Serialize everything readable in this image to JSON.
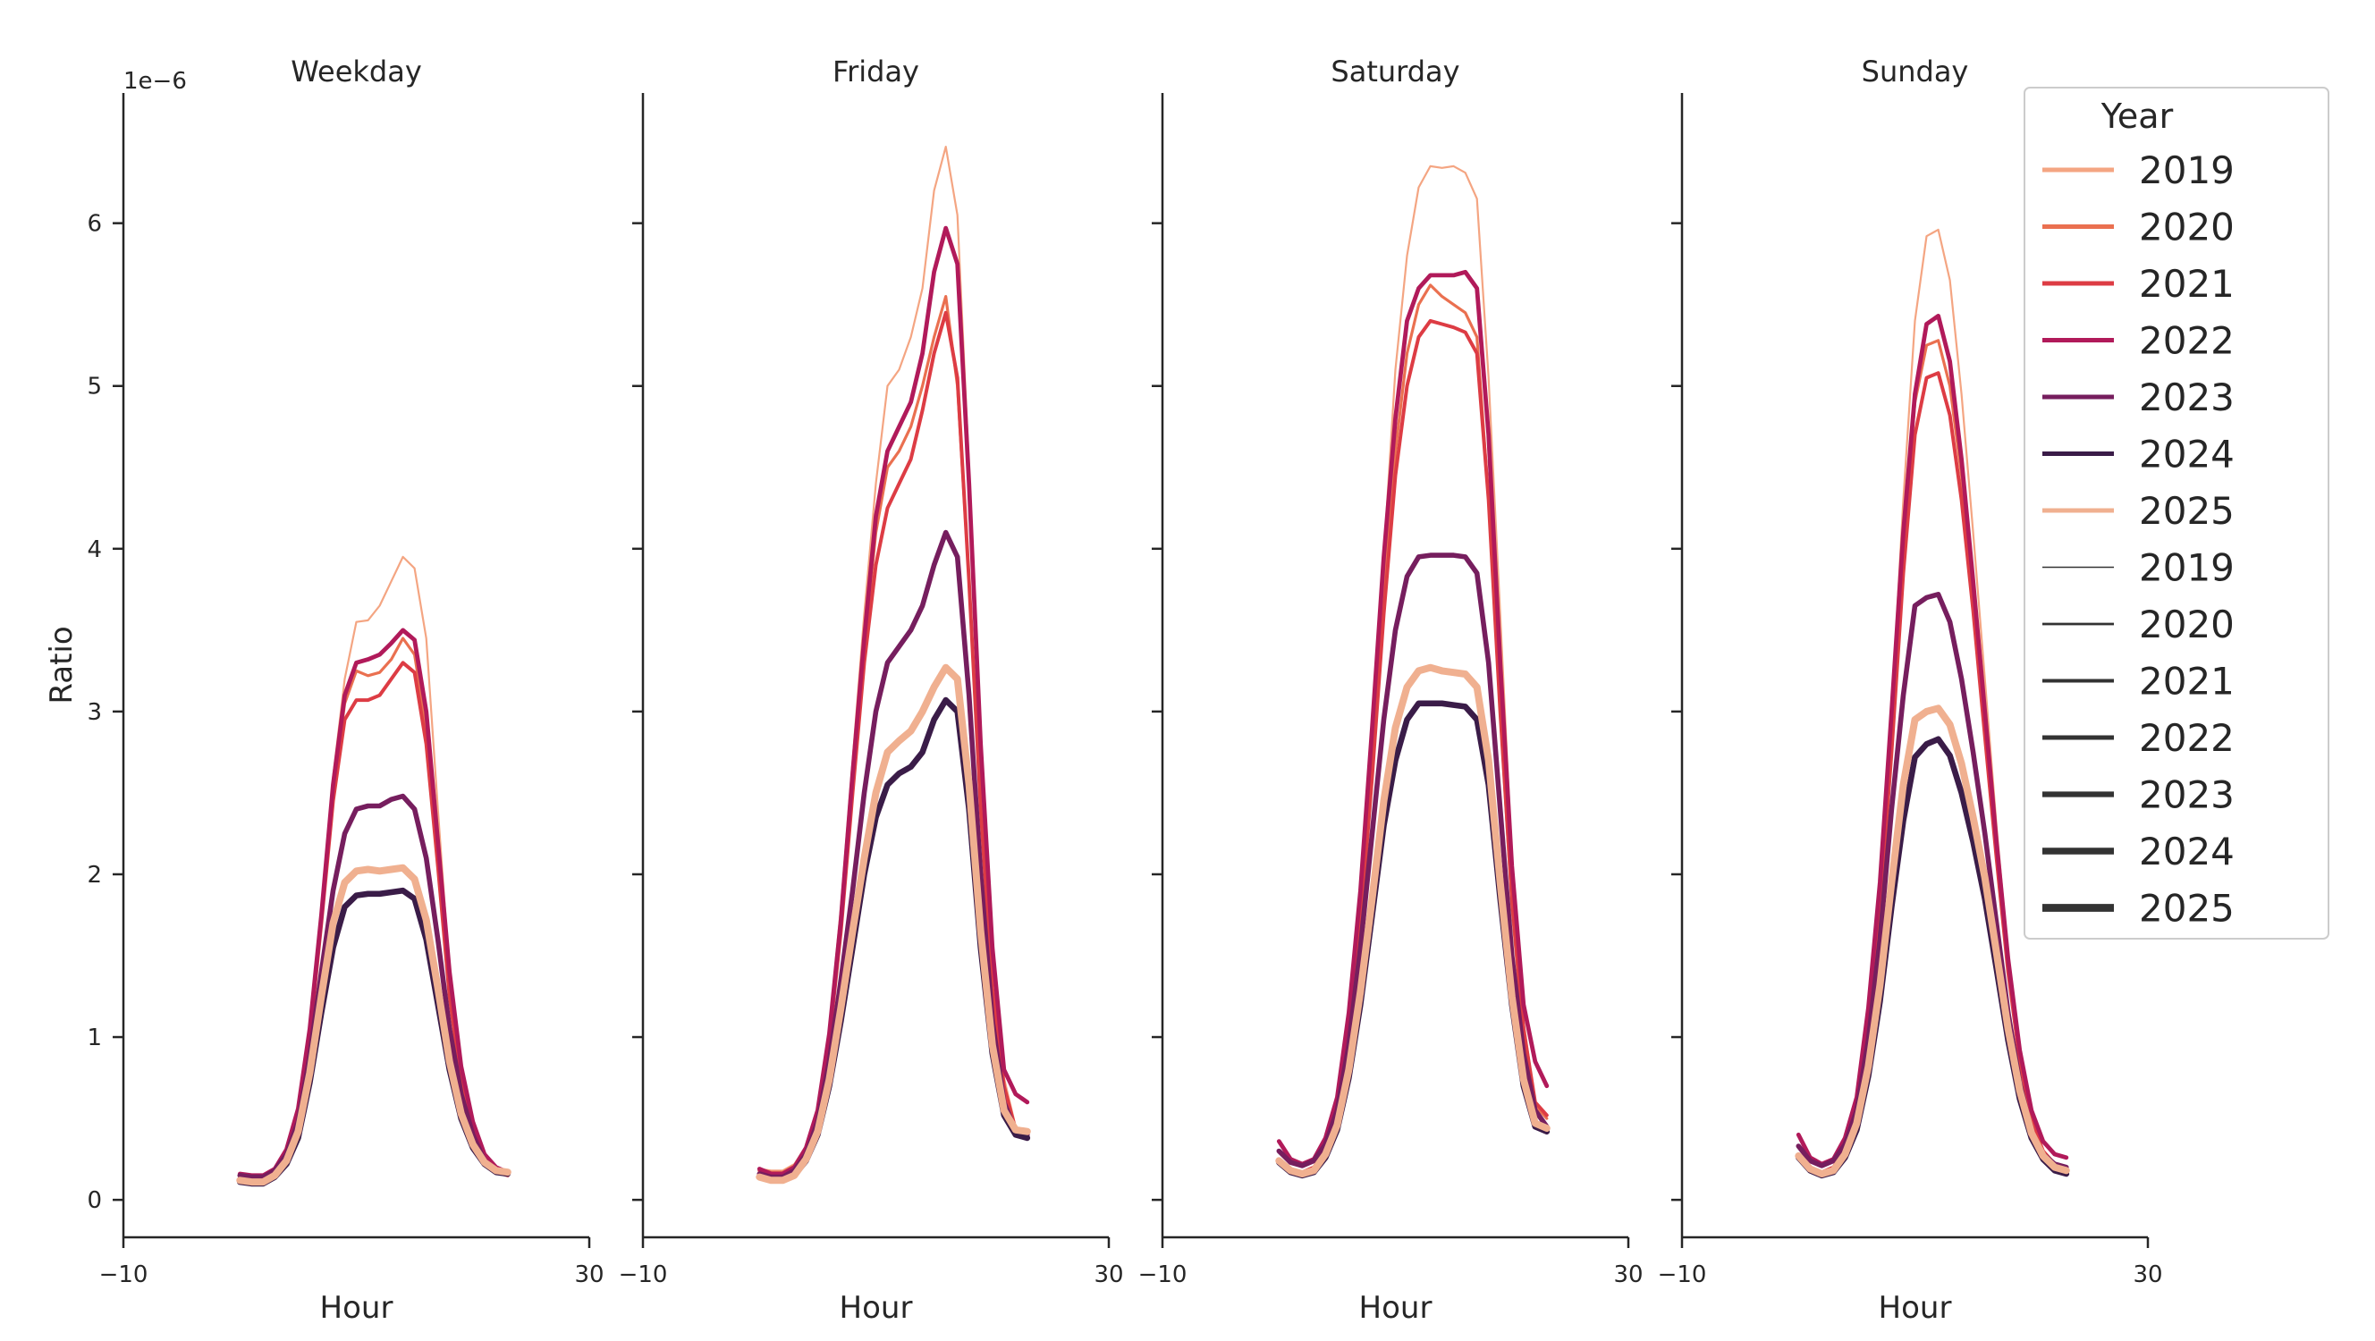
{
  "chart_data": {
    "type": "line",
    "hue_legend_title": "Year",
    "x_axis": {
      "label": "Hour",
      "range": [
        -10,
        30
      ],
      "tick_labels": [
        "−10",
        "30"
      ]
    },
    "y_axis": {
      "label": "Ratio",
      "offset_label": "1e−6",
      "range": [
        -0.23,
        6.8
      ],
      "tick_values": [
        0,
        1,
        2,
        3,
        4,
        5,
        6
      ],
      "tick_labels": [
        "0",
        "1",
        "2",
        "3",
        "4",
        "5",
        "6"
      ]
    },
    "years": [
      "2019",
      "2020",
      "2021",
      "2022",
      "2023",
      "2024",
      "2025"
    ],
    "year_colors": {
      "2019": "#f4a582",
      "2020": "#ea7050",
      "2021": "#dd3c44",
      "2022": "#b11a5a",
      "2023": "#761e5e",
      "2024": "#3a1c48",
      "2025": "#f0b090"
    },
    "size_legend_color": "#333333",
    "hours": [
      0,
      1,
      2,
      3,
      4,
      5,
      6,
      7,
      8,
      9,
      10,
      11,
      12,
      13,
      14,
      15,
      16,
      17,
      18,
      19,
      20,
      21,
      22,
      23
    ],
    "facets": [
      {
        "title": "Weekday",
        "series": [
          {
            "year": "2019",
            "values": [
              0.14,
              0.13,
              0.13,
              0.18,
              0.3,
              0.55,
              1.05,
              1.8,
              2.6,
              3.2,
              3.55,
              3.56,
              3.65,
              3.8,
              3.95,
              3.88,
              3.45,
              2.4,
              1.4,
              0.8,
              0.45,
              0.26,
              0.18,
              0.16
            ]
          },
          {
            "year": "2020",
            "values": [
              0.14,
              0.13,
              0.13,
              0.17,
              0.29,
              0.53,
              1.0,
              1.7,
              2.5,
              3.05,
              3.25,
              3.22,
              3.24,
              3.32,
              3.45,
              3.35,
              2.9,
              2.1,
              1.3,
              0.75,
              0.43,
              0.25,
              0.17,
              0.15
            ]
          },
          {
            "year": "2021",
            "values": [
              0.14,
              0.13,
              0.13,
              0.17,
              0.29,
              0.53,
              1.0,
              1.7,
              2.45,
              2.95,
              3.07,
              3.07,
              3.1,
              3.2,
              3.3,
              3.24,
              2.8,
              2.05,
              1.25,
              0.72,
              0.42,
              0.24,
              0.17,
              0.15
            ]
          },
          {
            "year": "2022",
            "values": [
              0.16,
              0.15,
              0.15,
              0.19,
              0.31,
              0.56,
              1.05,
              1.75,
              2.55,
              3.1,
              3.3,
              3.32,
              3.35,
              3.42,
              3.5,
              3.44,
              3.0,
              2.2,
              1.4,
              0.82,
              0.48,
              0.28,
              0.2,
              0.17
            ]
          },
          {
            "year": "2023",
            "values": [
              0.15,
              0.14,
              0.14,
              0.18,
              0.28,
              0.48,
              0.88,
              1.4,
              1.9,
              2.25,
              2.4,
              2.42,
              2.42,
              2.46,
              2.48,
              2.4,
              2.1,
              1.6,
              1.05,
              0.65,
              0.4,
              0.24,
              0.18,
              0.16
            ]
          },
          {
            "year": "2024",
            "values": [
              0.11,
              0.1,
              0.1,
              0.14,
              0.22,
              0.38,
              0.72,
              1.15,
              1.55,
              1.8,
              1.87,
              1.88,
              1.88,
              1.89,
              1.9,
              1.85,
              1.6,
              1.2,
              0.8,
              0.5,
              0.32,
              0.22,
              0.17,
              0.16
            ]
          },
          {
            "year": "2025",
            "values": [
              0.12,
              0.11,
              0.11,
              0.15,
              0.24,
              0.42,
              0.78,
              1.25,
              1.7,
              1.95,
              2.02,
              2.03,
              2.02,
              2.03,
              2.04,
              1.97,
              1.72,
              1.3,
              0.85,
              0.53,
              0.34,
              0.23,
              0.18,
              0.17
            ]
          }
        ]
      },
      {
        "title": "Friday",
        "series": [
          {
            "year": "2019",
            "values": [
              0.19,
              0.18,
              0.18,
              0.22,
              0.33,
              0.55,
              1.05,
              1.8,
              2.7,
              3.6,
              4.4,
              5.0,
              5.1,
              5.3,
              5.6,
              6.2,
              6.47,
              6.05,
              4.5,
              2.8,
              1.5,
              0.75,
              0.45,
              0.4
            ]
          },
          {
            "year": "2020",
            "values": [
              0.19,
              0.17,
              0.17,
              0.21,
              0.32,
              0.53,
              1.0,
              1.7,
              2.6,
              3.4,
              4.1,
              4.5,
              4.6,
              4.75,
              5.0,
              5.3,
              5.55,
              5.0,
              3.8,
              2.4,
              1.3,
              0.7,
              0.44,
              0.4
            ]
          },
          {
            "year": "2021",
            "values": [
              0.18,
              0.16,
              0.16,
              0.2,
              0.31,
              0.52,
              0.98,
              1.65,
              2.5,
              3.3,
              3.9,
              4.25,
              4.4,
              4.55,
              4.85,
              5.2,
              5.45,
              5.05,
              3.8,
              2.4,
              1.3,
              0.7,
              0.43,
              0.4
            ]
          },
          {
            "year": "2022",
            "values": [
              0.19,
              0.16,
              0.16,
              0.2,
              0.32,
              0.55,
              1.02,
              1.72,
              2.62,
              3.45,
              4.2,
              4.6,
              4.75,
              4.9,
              5.2,
              5.7,
              5.97,
              5.75,
              4.4,
              2.8,
              1.55,
              0.8,
              0.65,
              0.6
            ]
          },
          {
            "year": "2023",
            "values": [
              0.16,
              0.14,
              0.14,
              0.18,
              0.28,
              0.48,
              0.85,
              1.35,
              1.9,
              2.5,
              3.0,
              3.3,
              3.4,
              3.5,
              3.65,
              3.9,
              4.1,
              3.95,
              3.1,
              2.0,
              1.1,
              0.6,
              0.42,
              0.4
            ]
          },
          {
            "year": "2024",
            "values": [
              0.14,
              0.12,
              0.12,
              0.15,
              0.24,
              0.4,
              0.7,
              1.1,
              1.55,
              2.0,
              2.35,
              2.55,
              2.62,
              2.66,
              2.75,
              2.95,
              3.07,
              3.0,
              2.4,
              1.55,
              0.9,
              0.52,
              0.4,
              0.38
            ]
          },
          {
            "year": "2025",
            "values": [
              0.14,
              0.12,
              0.12,
              0.15,
              0.25,
              0.42,
              0.74,
              1.18,
              1.65,
              2.1,
              2.5,
              2.75,
              2.82,
              2.88,
              3.0,
              3.15,
              3.27,
              3.2,
              2.55,
              1.65,
              0.95,
              0.55,
              0.43,
              0.42
            ]
          }
        ]
      },
      {
        "title": "Saturday",
        "series": [
          {
            "year": "2019",
            "values": [
              0.24,
              0.19,
              0.17,
              0.2,
              0.31,
              0.55,
              1.05,
              1.8,
              2.8,
              3.95,
              5.1,
              5.8,
              6.22,
              6.35,
              6.34,
              6.35,
              6.31,
              6.15,
              5.05,
              3.6,
              2.1,
              1.1,
              0.6,
              0.5
            ]
          },
          {
            "year": "2020",
            "values": [
              0.24,
              0.19,
              0.17,
              0.2,
              0.3,
              0.53,
              1.0,
              1.7,
              2.65,
              3.7,
              4.6,
              5.2,
              5.5,
              5.62,
              5.55,
              5.5,
              5.45,
              5.3,
              4.3,
              3.0,
              1.8,
              1.0,
              0.58,
              0.5
            ]
          },
          {
            "year": "2021",
            "values": [
              0.25,
              0.19,
              0.17,
              0.2,
              0.3,
              0.53,
              1.0,
              1.68,
              2.6,
              3.6,
              4.45,
              5.0,
              5.3,
              5.4,
              5.38,
              5.36,
              5.33,
              5.2,
              4.3,
              3.0,
              1.85,
              1.05,
              0.6,
              0.52
            ]
          },
          {
            "year": "2022",
            "values": [
              0.36,
              0.25,
              0.22,
              0.25,
              0.38,
              0.63,
              1.15,
              1.9,
              2.9,
              3.95,
              4.8,
              5.4,
              5.6,
              5.68,
              5.68,
              5.68,
              5.7,
              5.6,
              4.7,
              3.3,
              2.05,
              1.2,
              0.85,
              0.7
            ]
          },
          {
            "year": "2023",
            "values": [
              0.3,
              0.23,
              0.21,
              0.24,
              0.34,
              0.55,
              0.95,
              1.55,
              2.25,
              2.95,
              3.5,
              3.83,
              3.95,
              3.96,
              3.96,
              3.96,
              3.95,
              3.85,
              3.3,
              2.4,
              1.5,
              0.9,
              0.55,
              0.45
            ]
          },
          {
            "year": "2024",
            "values": [
              0.23,
              0.17,
              0.15,
              0.17,
              0.26,
              0.43,
              0.75,
              1.2,
              1.75,
              2.3,
              2.7,
              2.95,
              3.05,
              3.05,
              3.05,
              3.04,
              3.03,
              2.95,
              2.55,
              1.85,
              1.2,
              0.7,
              0.45,
              0.42
            ]
          },
          {
            "year": "2025",
            "values": [
              0.24,
              0.18,
              0.16,
              0.18,
              0.28,
              0.46,
              0.8,
              1.28,
              1.85,
              2.45,
              2.9,
              3.15,
              3.25,
              3.27,
              3.25,
              3.24,
              3.23,
              3.15,
              2.7,
              1.95,
              1.25,
              0.74,
              0.47,
              0.44
            ]
          }
        ]
      },
      {
        "title": "Sunday",
        "series": [
          {
            "year": "2019",
            "values": [
              0.28,
              0.2,
              0.17,
              0.2,
              0.32,
              0.56,
              1.1,
              1.9,
              3.0,
              4.3,
              5.4,
              5.92,
              5.96,
              5.65,
              4.95,
              4.1,
              3.2,
              2.3,
              1.5,
              0.9,
              0.5,
              0.3,
              0.22,
              0.2
            ]
          },
          {
            "year": "2020",
            "values": [
              0.28,
              0.2,
              0.17,
              0.2,
              0.31,
              0.54,
              1.05,
              1.8,
              2.85,
              4.0,
              4.9,
              5.25,
              5.28,
              5.0,
              4.45,
              3.7,
              2.9,
              2.1,
              1.4,
              0.85,
              0.48,
              0.29,
              0.21,
              0.19
            ]
          },
          {
            "year": "2021",
            "values": [
              0.28,
              0.2,
              0.17,
              0.2,
              0.31,
              0.54,
              1.05,
              1.78,
              2.75,
              3.85,
              4.7,
              5.05,
              5.08,
              4.82,
              4.3,
              3.62,
              2.85,
              2.1,
              1.4,
              0.86,
              0.49,
              0.3,
              0.22,
              0.2
            ]
          },
          {
            "year": "2022",
            "values": [
              0.4,
              0.26,
              0.22,
              0.25,
              0.38,
              0.63,
              1.18,
              1.95,
              3.0,
              4.1,
              4.95,
              5.38,
              5.43,
              5.15,
              4.55,
              3.8,
              3.0,
              2.2,
              1.48,
              0.92,
              0.55,
              0.36,
              0.28,
              0.26
            ]
          },
          {
            "year": "2023",
            "values": [
              0.33,
              0.24,
              0.21,
              0.24,
              0.34,
              0.55,
              0.98,
              1.6,
              2.4,
              3.1,
              3.65,
              3.7,
              3.72,
              3.55,
              3.2,
              2.75,
              2.25,
              1.7,
              1.15,
              0.72,
              0.42,
              0.28,
              0.22,
              0.2
            ]
          },
          {
            "year": "2024",
            "values": [
              0.26,
              0.18,
              0.15,
              0.17,
              0.26,
              0.43,
              0.76,
              1.22,
              1.8,
              2.33,
              2.72,
              2.8,
              2.83,
              2.73,
              2.5,
              2.2,
              1.85,
              1.42,
              0.98,
              0.62,
              0.38,
              0.25,
              0.18,
              0.16
            ]
          },
          {
            "year": "2025",
            "values": [
              0.27,
              0.19,
              0.16,
              0.18,
              0.28,
              0.47,
              0.82,
              1.32,
              1.95,
              2.55,
              2.95,
              3.0,
              3.02,
              2.92,
              2.68,
              2.35,
              1.98,
              1.52,
              1.05,
              0.67,
              0.41,
              0.27,
              0.2,
              0.18
            ]
          }
        ]
      }
    ]
  }
}
